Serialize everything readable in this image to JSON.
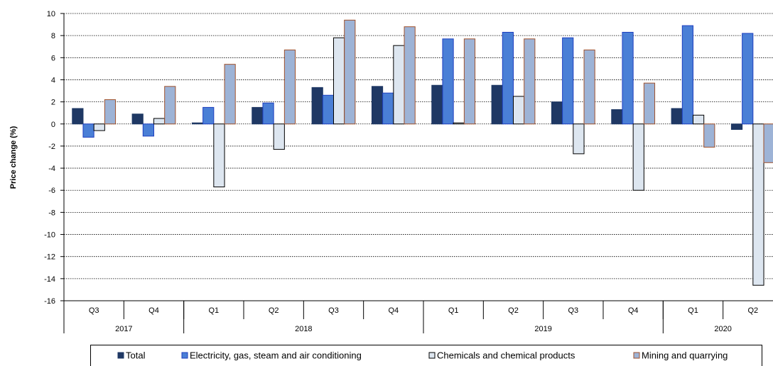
{
  "chart_data": {
    "type": "bar",
    "title": "",
    "ylabel": "Price change (%)",
    "ylim": [
      -16,
      10
    ],
    "yticks": [
      10,
      8,
      6,
      4,
      2,
      0,
      -2,
      -4,
      -6,
      -8,
      -10,
      -12,
      -14,
      -16
    ],
    "grid": "horizontal-dotted",
    "legend_position": "bottom",
    "categories": [
      "Q3",
      "Q4",
      "Q1",
      "Q2",
      "Q3",
      "Q4",
      "Q1",
      "Q2",
      "Q3",
      "Q4",
      "Q1",
      "Q2"
    ],
    "years": [
      {
        "label": "2017",
        "count": 2
      },
      {
        "label": "2018",
        "count": 4
      },
      {
        "label": "2019",
        "count": 4
      },
      {
        "label": "2020",
        "count": 2
      }
    ],
    "series": [
      {
        "name": "Total",
        "color": "#1f3864",
        "stroke": "#1f3864",
        "values": [
          1.4,
          0.9,
          0.1,
          1.5,
          3.3,
          3.4,
          3.5,
          3.5,
          2.0,
          1.3,
          1.4,
          -0.5
        ]
      },
      {
        "name": "Electricity, gas, steam and air conditioning",
        "color": "#4a7fd6",
        "stroke": "#1f3fbf",
        "values": [
          -1.2,
          -1.1,
          1.5,
          1.9,
          2.6,
          2.8,
          7.7,
          8.3,
          7.8,
          8.3,
          8.9,
          8.2
        ]
      },
      {
        "name": "Chemicals and chemical products",
        "color": "#dde6f0",
        "stroke": "#000000",
        "values": [
          -0.6,
          0.5,
          -5.7,
          -2.3,
          7.8,
          7.1,
          0.1,
          2.5,
          -2.7,
          -6.0,
          0.8,
          -14.6
        ]
      },
      {
        "name": "Mining and quarrying",
        "color": "#9db3d6",
        "stroke": "#a0522d",
        "values": [
          2.2,
          3.4,
          5.4,
          6.7,
          9.4,
          8.8,
          7.7,
          7.7,
          6.7,
          3.7,
          -2.1,
          -3.5
        ]
      }
    ]
  }
}
